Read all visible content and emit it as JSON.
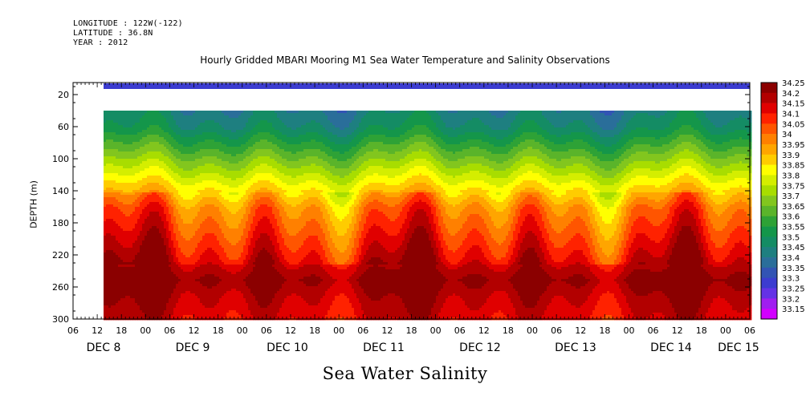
{
  "header": {
    "longitude": "LONGITUDE : 122W(-122)",
    "latitude": "LATITUDE : 36.8N",
    "year": "YEAR : 2012",
    "title": "Hourly Gridded MBARI Mooring M1 Sea Water Temperature and Salinity Observations"
  },
  "chart_data": {
    "type": "heatmap",
    "title": "Hourly Gridded MBARI Mooring M1 Sea Water Temperature and Salinity Observations",
    "xlabel": "Sea Water Salinity",
    "ylabel": "DEPTH (m)",
    "y_ticks": [
      20,
      60,
      100,
      140,
      180,
      220,
      260,
      300
    ],
    "ylim": [
      300,
      5
    ],
    "x_hour_ticks": [
      "06",
      "12",
      "18",
      "00",
      "06",
      "12",
      "18",
      "00",
      "06",
      "12",
      "18",
      "00",
      "06",
      "12",
      "18",
      "00",
      "06",
      "12",
      "18",
      "00",
      "06",
      "12",
      "18",
      "00",
      "06",
      "12",
      "18",
      "00",
      "06"
    ],
    "x_day_labels": [
      "DEC 8",
      "DEC 9",
      "DEC 10",
      "DEC 11",
      "DEC 12",
      "DEC 13",
      "DEC 14",
      "DEC 15"
    ],
    "data_start": "DEC 8 12:00",
    "data_end": "DEC 15 06:00",
    "colorbar": {
      "levels": [
        "34.25",
        "34.2",
        "34.15",
        "34.1",
        "34.05",
        "34",
        "33.95",
        "33.9",
        "33.85",
        "33.8",
        "33.75",
        "33.7",
        "33.65",
        "33.6",
        "33.55",
        "33.5",
        "33.45",
        "33.4",
        "33.35",
        "33.3",
        "33.25",
        "33.2",
        "33.15"
      ],
      "colors": [
        "#8b0000",
        "#b20000",
        "#e00000",
        "#ff2200",
        "#ff5500",
        "#ff8000",
        "#ffa500",
        "#ffcc00",
        "#ffff00",
        "#d4ee00",
        "#a8dd00",
        "#82c61e",
        "#5ab42a",
        "#2ea236",
        "#14964a",
        "#148c64",
        "#1e7f80",
        "#2a6e9a",
        "#3254b4",
        "#3c3cd0",
        "#6432e6",
        "#a01ef0",
        "#d200ff"
      ]
    },
    "depth_profile": [
      {
        "depth": 10,
        "salinity": 33.3
      },
      {
        "depth": 40,
        "salinity": 33.45
      },
      {
        "depth": 60,
        "salinity": 33.5
      },
      {
        "depth": 80,
        "salinity": 33.6
      },
      {
        "depth": 100,
        "salinity": 33.7
      },
      {
        "depth": 120,
        "salinity": 33.8
      },
      {
        "depth": 140,
        "salinity": 33.9
      },
      {
        "depth": 160,
        "salinity": 34.0
      },
      {
        "depth": 180,
        "salinity": 34.05
      },
      {
        "depth": 200,
        "salinity": 34.1
      },
      {
        "depth": 220,
        "salinity": 34.15
      },
      {
        "depth": 250,
        "salinity": 34.25
      },
      {
        "depth": 270,
        "salinity": 34.2
      },
      {
        "depth": 300,
        "salinity": 34.15
      }
    ],
    "grid": false
  }
}
